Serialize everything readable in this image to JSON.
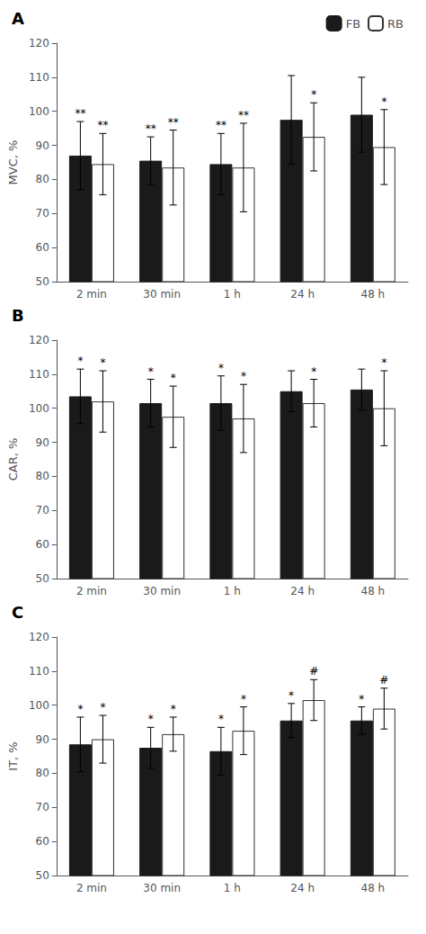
{
  "chart_data": [
    {
      "type": "bar",
      "title": "A",
      "ylabel": "MVC, %",
      "categories": [
        "2 min",
        "30 min",
        "1 h",
        "24 h",
        "48 h"
      ],
      "series": [
        {
          "name": "FB",
          "color": "#1a1a1a",
          "values": [
            87,
            85.5,
            84.5,
            97.5,
            99
          ],
          "errors": [
            10,
            7,
            9,
            13,
            11
          ],
          "significance": [
            "**",
            "**",
            "**",
            null,
            null
          ]
        },
        {
          "name": "RB",
          "color": "#ffffff",
          "values": [
            84.5,
            83.5,
            83.5,
            92.5,
            89.5
          ],
          "errors": [
            9,
            11,
            13,
            10,
            11
          ],
          "significance": [
            "**",
            "**",
            "**",
            "*",
            "*"
          ]
        }
      ],
      "ylim": [
        50,
        120
      ],
      "yticks": [
        50,
        60,
        70,
        80,
        90,
        100,
        110,
        120
      ],
      "grid": false,
      "legend": "upper right"
    },
    {
      "type": "bar",
      "title": "B",
      "ylabel": "CAR, %",
      "categories": [
        "2 min",
        "30 min",
        "1 h",
        "24 h",
        "48 h"
      ],
      "series": [
        {
          "name": "FB",
          "color": "#1a1a1a",
          "values": [
            103.5,
            101.5,
            101.5,
            105,
            105.5
          ],
          "errors": [
            8,
            7,
            8,
            6,
            6
          ],
          "significance": [
            "*",
            "*",
            "*",
            null,
            null
          ]
        },
        {
          "name": "RB",
          "color": "#ffffff",
          "values": [
            102,
            97.5,
            97,
            101.5,
            100
          ],
          "errors": [
            9,
            9,
            10,
            7,
            11
          ],
          "significance": [
            "*",
            "*",
            "*",
            "*",
            "*"
          ]
        }
      ],
      "ylim": [
        50,
        120
      ],
      "yticks": [
        50,
        60,
        70,
        80,
        90,
        100,
        110,
        120
      ],
      "grid": false
    },
    {
      "type": "bar",
      "title": "C",
      "ylabel": "IT, %",
      "categories": [
        "2 min",
        "30 min",
        "1 h",
        "24 h",
        "48 h"
      ],
      "series": [
        {
          "name": "FB",
          "color": "#1a1a1a",
          "values": [
            88.5,
            87.5,
            86.5,
            95.5,
            95.5
          ],
          "errors": [
            8,
            6,
            7,
            5,
            4
          ],
          "significance": [
            "*",
            "*",
            "*",
            "*",
            "*"
          ]
        },
        {
          "name": "RB",
          "color": "#ffffff",
          "values": [
            90,
            91.5,
            92.5,
            101.5,
            99
          ],
          "errors": [
            7,
            5,
            7,
            6,
            6
          ],
          "significance": [
            "*",
            "*",
            "*",
            "#",
            "#"
          ]
        }
      ],
      "ylim": [
        50,
        120
      ],
      "yticks": [
        50,
        60,
        70,
        80,
        90,
        100,
        110,
        120
      ],
      "grid": false
    }
  ]
}
